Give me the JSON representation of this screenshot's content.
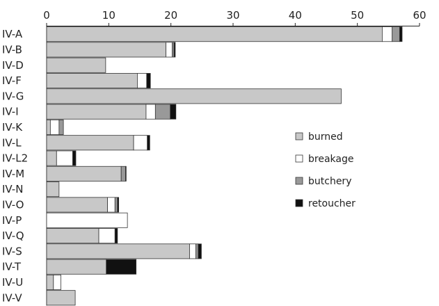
{
  "chart_data": {
    "type": "bar",
    "orientation": "horizontal",
    "stacked": true,
    "title": "",
    "xlabel": "",
    "ylabel": "",
    "xlim": [
      0,
      60
    ],
    "xticks": [
      0,
      10,
      20,
      30,
      40,
      50,
      60
    ],
    "x_axis_position": "top",
    "grid": false,
    "legend_position": "right",
    "categories": [
      "IV-A",
      "IV-B",
      "IV-D",
      "IV-F",
      "IV-G",
      "IV-I",
      "IV-K",
      "IV-L",
      "IV-L2",
      "IV-M",
      "IV-N",
      "IV-O",
      "IV-P",
      "IV-Q",
      "IV-S",
      "IV-T",
      "IV-U",
      "IV-V"
    ],
    "series": [
      {
        "name": "burned",
        "color": "#c8c8c8",
        "values": [
          54,
          19.2,
          9.5,
          14.6,
          47.4,
          16,
          0.6,
          14,
          1.6,
          12,
          2,
          9.8,
          0,
          8.4,
          23,
          9.6,
          1.1,
          4.6
        ]
      },
      {
        "name": "breakage",
        "color": "#ffffff",
        "values": [
          1.6,
          1,
          0,
          1.5,
          0,
          1.5,
          1.4,
          2.2,
          2.6,
          0,
          0,
          1.2,
          13,
          2.6,
          1,
          0,
          1.2,
          0
        ]
      },
      {
        "name": "butchery",
        "color": "#999999",
        "values": [
          1.2,
          0.3,
          0,
          0,
          0,
          2.4,
          0.7,
          0,
          0,
          0.7,
          0,
          0.4,
          0,
          0,
          0.4,
          0,
          0,
          0
        ]
      },
      {
        "name": "retoucher",
        "color": "#111111",
        "values": [
          0.4,
          0.2,
          0,
          0.6,
          0,
          0.9,
          0,
          0.4,
          0.5,
          0.1,
          0,
          0.2,
          0,
          0.4,
          0.5,
          4.8,
          0,
          0
        ]
      }
    ]
  }
}
